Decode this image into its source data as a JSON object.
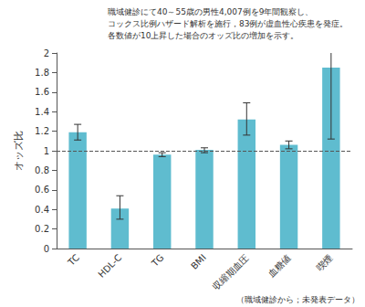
{
  "chart_data": {
    "type": "bar",
    "annotation": [
      "職域健診にて40～55歳の男性4,007例を9年間観察し、",
      "コックス比例ハザード解析を施行，83例が虚血性心疾患を発症。",
      "各数値が10上昇した場合のオッズ比の増加を示す。"
    ],
    "ylabel": "オッズ比",
    "categories": [
      "TC",
      "HDL-C",
      "TG",
      "BMI",
      "収縮期血圧",
      "血糖値",
      "喫煙"
    ],
    "values": [
      1.19,
      0.41,
      0.96,
      1.01,
      1.32,
      1.06,
      1.85
    ],
    "error_low": [
      1.11,
      0.3,
      0.94,
      0.98,
      1.16,
      1.02,
      1.12
    ],
    "error_high": [
      1.27,
      0.54,
      0.98,
      1.03,
      1.49,
      1.1,
      2.01
    ],
    "hline": 1,
    "color": "#5fbccf",
    "ylim": [
      0,
      2
    ],
    "yticks": [
      0,
      0.2,
      0.4,
      0.6,
      0.8,
      1,
      1.2,
      1.4,
      1.6,
      1.8,
      2
    ],
    "grid": false,
    "source": "（職域健診から；未発表データ）"
  }
}
